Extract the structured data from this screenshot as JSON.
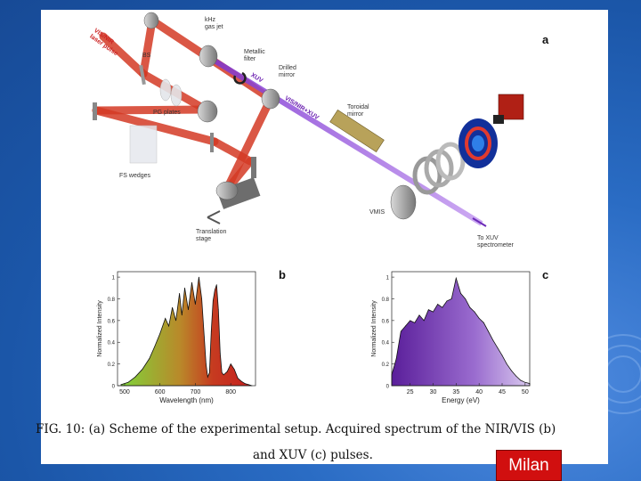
{
  "setup_labels": {
    "pulse": "VIS/NIR\nlaser pulse",
    "bs": "BS",
    "gasjet": "kHz\ngas jet",
    "filter": "Metallic\nfilter",
    "drilled": "Drilled\nmirror",
    "xuv": "XUV",
    "visnirxuv": "VIS/NIR+XUV",
    "toroidal": "Toroidal\nmirror",
    "pg": "PG plates",
    "fs": "FS wedges",
    "vmis": "VMIS",
    "translation": "Translation\nstage",
    "spectrometer": "To XUV\nspectrometer"
  },
  "panels": {
    "a": "a",
    "b": "b",
    "c": "c"
  },
  "caption": {
    "line1": "FIG. 10: (a) Scheme of the experimental setup. Acquired spectrum of the NIR/VIS (b)",
    "line2": "and XUV (c) pulses."
  },
  "badge": "Milan",
  "chart_data": [
    {
      "type": "area",
      "xlabel": "Wavelength (nm)",
      "ylabel": "Normalized Intensity",
      "xlim": [
        480,
        870
      ],
      "ylim": [
        0,
        1.05
      ],
      "xticks": [
        500,
        600,
        700,
        800
      ],
      "yticks": [
        0,
        0.2,
        0.4,
        0.6,
        0.8,
        1
      ],
      "x": [
        490,
        510,
        530,
        550,
        570,
        585,
        600,
        615,
        625,
        635,
        645,
        655,
        662,
        670,
        680,
        690,
        700,
        710,
        718,
        725,
        730,
        735,
        740,
        745,
        750,
        755,
        760,
        765,
        770,
        775,
        780,
        790,
        800,
        810,
        820,
        830,
        840,
        850,
        860
      ],
      "y": [
        0.01,
        0.03,
        0.08,
        0.15,
        0.25,
        0.36,
        0.48,
        0.62,
        0.55,
        0.72,
        0.6,
        0.85,
        0.65,
        0.9,
        0.7,
        0.95,
        0.75,
        1.0,
        0.8,
        0.45,
        0.2,
        0.08,
        0.12,
        0.5,
        0.78,
        0.88,
        0.93,
        0.7,
        0.3,
        0.12,
        0.1,
        0.13,
        0.2,
        0.15,
        0.07,
        0.04,
        0.02,
        0.01,
        0.0
      ]
    },
    {
      "type": "area",
      "xlabel": "Energy (eV)",
      "ylabel": "Normalized Intensity",
      "xlim": [
        21,
        51
      ],
      "ylim": [
        0,
        1.05
      ],
      "xticks": [
        25,
        30,
        35,
        40,
        45,
        50
      ],
      "yticks": [
        0,
        0.2,
        0.4,
        0.6,
        0.8,
        1
      ],
      "x": [
        21,
        22,
        23,
        24,
        25,
        26,
        27,
        28,
        29,
        30,
        31,
        32,
        33,
        34,
        35,
        36,
        37,
        38,
        39,
        40,
        41,
        42,
        43,
        44,
        45,
        46,
        47,
        48,
        49,
        50,
        51
      ],
      "y": [
        0.1,
        0.25,
        0.5,
        0.55,
        0.6,
        0.58,
        0.65,
        0.6,
        0.7,
        0.68,
        0.75,
        0.72,
        0.78,
        0.8,
        0.99,
        0.85,
        0.8,
        0.72,
        0.68,
        0.62,
        0.58,
        0.5,
        0.42,
        0.35,
        0.28,
        0.2,
        0.14,
        0.09,
        0.05,
        0.03,
        0.02
      ]
    }
  ]
}
